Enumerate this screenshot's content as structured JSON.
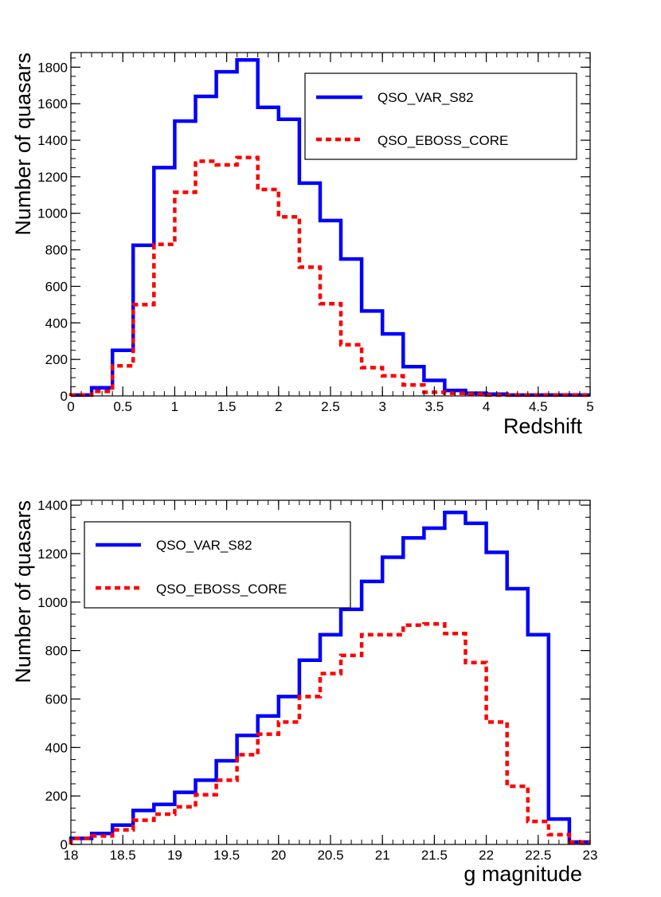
{
  "chart_data": [
    {
      "type": "histogram",
      "xlabel": "Redshift",
      "ylabel": "Number of quasars",
      "xlim": [
        0,
        5
      ],
      "ylim": [
        0,
        1880
      ],
      "xticks": [
        "0",
        "0.5",
        "1",
        "1.5",
        "2",
        "2.5",
        "3",
        "3.5",
        "4",
        "4.5",
        "5"
      ],
      "xtick_values": [
        0,
        0.5,
        1,
        1.5,
        2,
        2.5,
        3,
        3.5,
        4,
        4.5,
        5
      ],
      "yticks": [
        "0",
        "200",
        "400",
        "600",
        "800",
        "1000",
        "1200",
        "1400",
        "1600",
        "1800"
      ],
      "ytick_values": [
        0,
        200,
        400,
        600,
        800,
        1000,
        1200,
        1400,
        1600,
        1800
      ],
      "bin_edges": [
        0,
        0.2,
        0.4,
        0.6,
        0.8,
        1.0,
        1.2,
        1.4,
        1.6,
        1.8,
        2.0,
        2.2,
        2.4,
        2.6,
        2.8,
        3.0,
        3.2,
        3.4,
        3.6,
        3.8,
        4.0,
        4.2,
        4.4,
        4.6,
        4.8,
        5.0
      ],
      "legend_position": "top-right",
      "series": [
        {
          "name": "QSO_VAR_S82",
          "color": "#0000ff",
          "style": "solid",
          "values": [
            5,
            45,
            250,
            825,
            1250,
            1505,
            1640,
            1775,
            1840,
            1580,
            1515,
            1165,
            960,
            750,
            465,
            340,
            160,
            85,
            30,
            15,
            10,
            5,
            5,
            5,
            5
          ]
        },
        {
          "name": "QSO_EBOSS_CORE",
          "color": "#ff0000",
          "style": "dashed",
          "values": [
            5,
            25,
            165,
            500,
            830,
            1115,
            1285,
            1265,
            1305,
            1130,
            980,
            705,
            505,
            280,
            155,
            110,
            60,
            20,
            15,
            10,
            5,
            5,
            5,
            5,
            5
          ]
        }
      ]
    },
    {
      "type": "histogram",
      "xlabel": "g magnitude",
      "ylabel": "Number of quasars",
      "xlim": [
        18,
        23
      ],
      "ylim": [
        0,
        1420
      ],
      "xticks": [
        "18",
        "18.5",
        "19",
        "19.5",
        "20",
        "20.5",
        "21",
        "21.5",
        "22",
        "22.5",
        "23"
      ],
      "xtick_values": [
        18,
        18.5,
        19,
        19.5,
        20,
        20.5,
        21,
        21.5,
        22,
        22.5,
        23
      ],
      "yticks": [
        "0",
        "200",
        "400",
        "600",
        "800",
        "1000",
        "1200",
        "1400"
      ],
      "ytick_values": [
        0,
        200,
        400,
        600,
        800,
        1000,
        1200,
        1400
      ],
      "bin_edges": [
        18.0,
        18.2,
        18.4,
        18.6,
        18.8,
        19.0,
        19.2,
        19.4,
        19.6,
        19.8,
        20.0,
        20.2,
        20.4,
        20.6,
        20.8,
        21.0,
        21.2,
        21.4,
        21.6,
        21.8,
        22.0,
        22.2,
        22.4,
        22.6,
        22.8,
        23.0
      ],
      "legend_position": "top-left",
      "series": [
        {
          "name": "QSO_VAR_S82",
          "color": "#0000ff",
          "style": "solid",
          "values": [
            25,
            45,
            80,
            140,
            165,
            215,
            265,
            345,
            450,
            530,
            610,
            760,
            865,
            970,
            1085,
            1185,
            1265,
            1305,
            1370,
            1325,
            1205,
            1055,
            865,
            105,
            10
          ]
        },
        {
          "name": "QSO_EBOSS_CORE",
          "color": "#ff0000",
          "style": "dashed",
          "values": [
            25,
            35,
            60,
            100,
            125,
            155,
            205,
            265,
            370,
            455,
            505,
            610,
            705,
            780,
            865,
            865,
            905,
            910,
            870,
            750,
            505,
            240,
            95,
            40,
            10
          ]
        }
      ]
    }
  ]
}
